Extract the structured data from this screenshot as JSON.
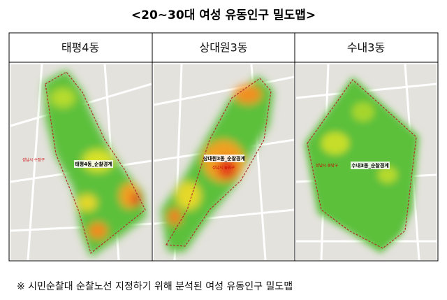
{
  "title": "<20~30대 여성 유동인구 밀도맵>",
  "table": {
    "headers": [
      "태평4동",
      "상대원3동",
      "수내3동"
    ],
    "maps": [
      {
        "boundary_label": "태평4동_순찰경계",
        "district_label": "성남시 수정구"
      },
      {
        "boundary_label": "상대원3동_순찰경계",
        "district_label": "성남시 중원구"
      },
      {
        "boundary_label": "수내3동_순찰경계",
        "district_label": "성남시 분당구"
      }
    ]
  },
  "footnote": "※ 시민순찰대 순찰노선 지정하기 위해 분석된 여성 유동인구 밀도맵"
}
